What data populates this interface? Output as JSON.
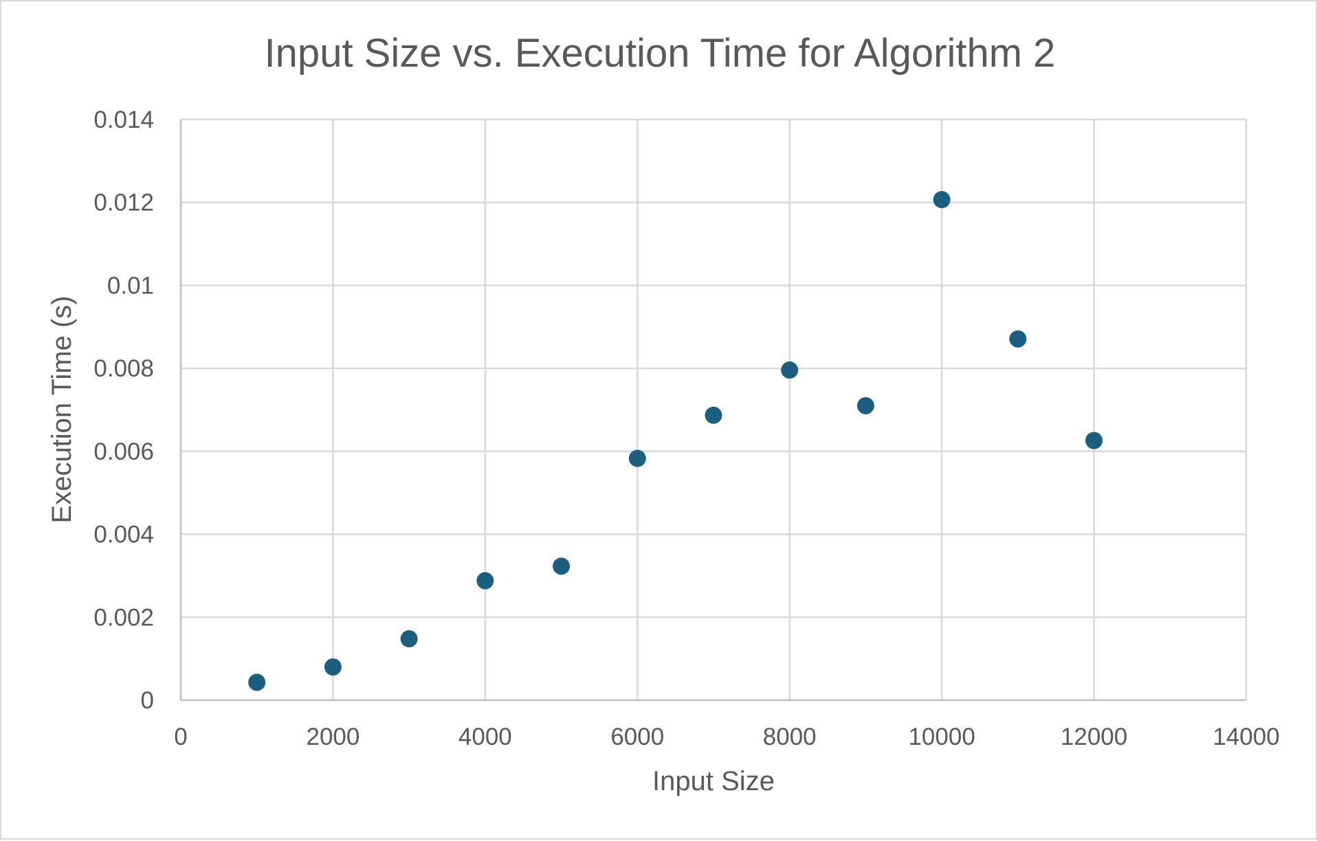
{
  "chart_data": {
    "type": "scatter",
    "title": "Input Size vs. Execution Time for Algorithm 2",
    "xlabel": "Input Size",
    "ylabel": "Execution Time (s)",
    "xlim": [
      0,
      14000
    ],
    "ylim": [
      0,
      0.014
    ],
    "x_ticks": [
      "0",
      "2000",
      "4000",
      "6000",
      "8000",
      "10000",
      "12000",
      "14000"
    ],
    "y_ticks": [
      "0",
      "0.002",
      "0.004",
      "0.006",
      "0.008",
      "0.01",
      "0.012",
      "0.014"
    ],
    "grid": true,
    "legend": "none",
    "marker_color": "#1a5e80",
    "series": [
      {
        "x": [
          1000,
          2000,
          3000,
          4000,
          5000,
          6000,
          7000,
          8000,
          9000,
          10000,
          11000,
          12000
        ],
        "y": [
          0.00043,
          0.0008,
          0.00148,
          0.00288,
          0.00323,
          0.00583,
          0.00687,
          0.00796,
          0.0071,
          0.01207,
          0.00871,
          0.00626
        ]
      }
    ]
  }
}
